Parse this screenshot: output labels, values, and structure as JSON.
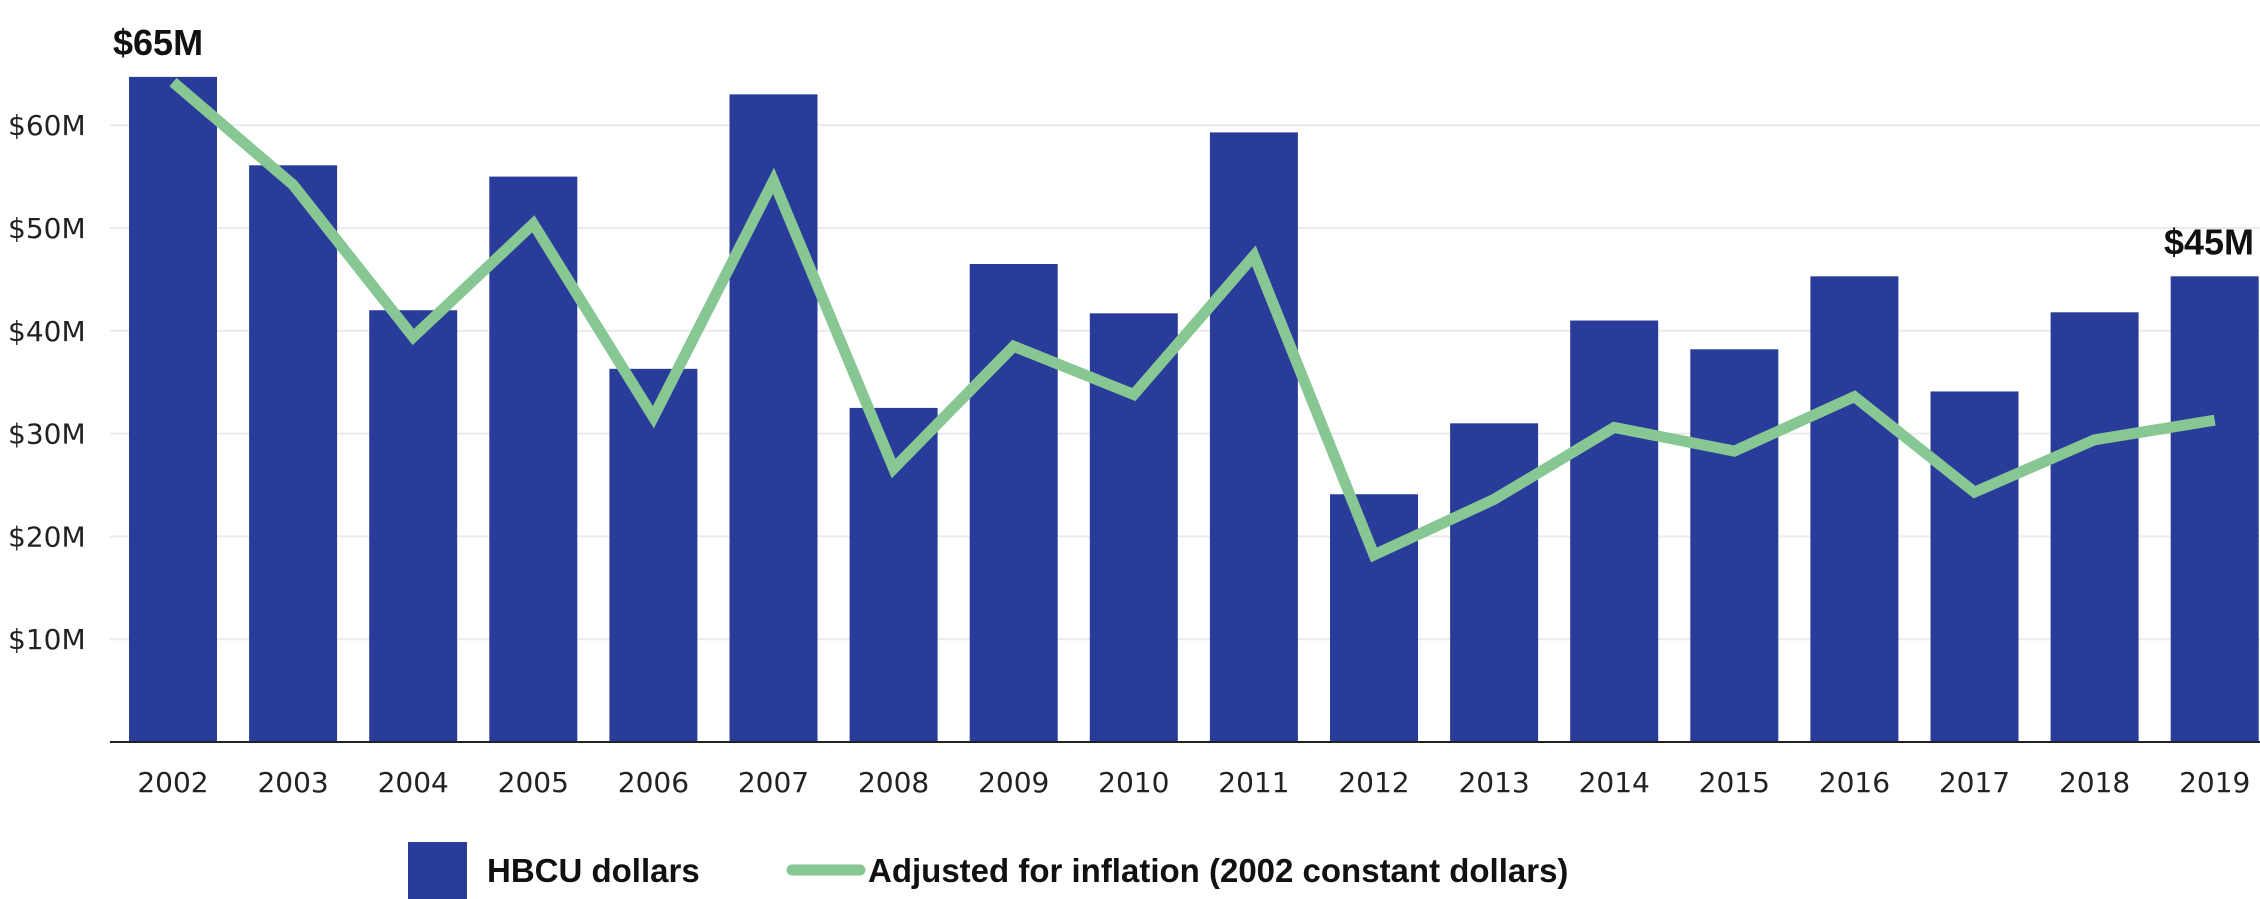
{
  "chart_data": {
    "type": "bar",
    "categories": [
      "2002",
      "2003",
      "2004",
      "2005",
      "2006",
      "2007",
      "2008",
      "2009",
      "2010",
      "2011",
      "2012",
      "2013",
      "2014",
      "2015",
      "2016",
      "2017",
      "2018",
      "2019"
    ],
    "series": [
      {
        "name": "HBCU dollars",
        "type": "bar",
        "color": "#2a3c9a",
        "values": [
          64.7,
          56.1,
          42.0,
          55.0,
          36.3,
          63.0,
          32.5,
          46.5,
          41.7,
          59.3,
          24.1,
          31.0,
          41.0,
          38.2,
          45.3,
          34.1,
          41.8,
          45.3
        ]
      },
      {
        "name": "Adjusted for inflation (2002 constant dollars)",
        "type": "line",
        "color": "#86c794",
        "values": [
          64.2,
          54.2,
          39.4,
          50.4,
          31.6,
          54.6,
          26.6,
          38.5,
          33.8,
          47.3,
          18.2,
          23.6,
          30.6,
          28.3,
          33.6,
          24.3,
          29.4,
          31.3
        ]
      }
    ],
    "y_ticks": [
      "$10M",
      "$20M",
      "$30M",
      "$40M",
      "$50M",
      "$60M"
    ],
    "y_tick_values": [
      10,
      20,
      30,
      40,
      50,
      60
    ],
    "ylim": [
      0,
      70
    ],
    "grid": true,
    "legend_placement": "bottom",
    "annotations": [
      {
        "text": "$65M",
        "category": "2002",
        "value": 64.7
      },
      {
        "text": "$45M",
        "category": "2019",
        "value": 45.3
      }
    ],
    "xlabel": "",
    "ylabel": "",
    "axis_color": "#222222",
    "grid_color": "#ebebeb"
  }
}
